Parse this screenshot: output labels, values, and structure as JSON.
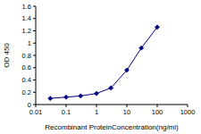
{
  "chart_data": {
    "type": "line",
    "x_label": "Recombinant ProteinConcentration(ng/ml)",
    "y_label": "OD 450",
    "x": [
      0.03,
      0.1,
      0.3,
      1,
      3,
      10,
      30,
      100
    ],
    "series": [
      {
        "name": null,
        "color": "#000080",
        "marker": "diamond",
        "line_style": "solid",
        "values": [
          0.1,
          0.12,
          0.14,
          0.18,
          0.27,
          0.56,
          0.92,
          1.26
        ]
      }
    ],
    "xlim": [
      0.01,
      1000
    ],
    "xticks": [
      0.01,
      0.1,
      1,
      10,
      100,
      1000
    ],
    "ylim": [
      0,
      1.6
    ],
    "yticks": [
      0,
      0.2,
      0.4,
      0.6,
      0.8,
      1,
      1.2,
      1.4,
      1.6
    ],
    "log": "x",
    "grid": false
  }
}
